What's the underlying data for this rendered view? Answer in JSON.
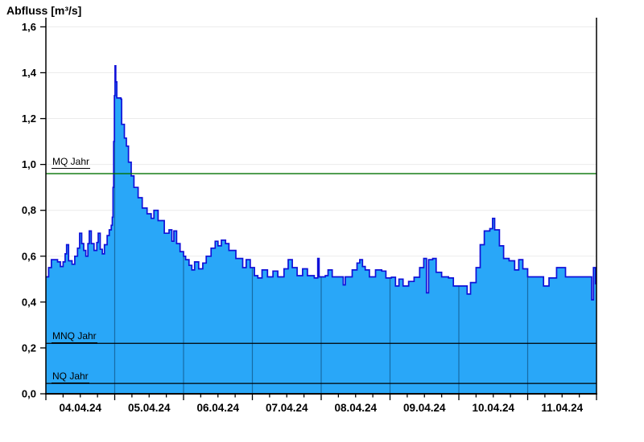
{
  "title": "Abfluss [m³/s]",
  "colors": {
    "area_fill": "#29A7F8",
    "area_outline": "#1010D8",
    "mq_line": "#007000",
    "mnq_nq_line": "#000000",
    "axis": "#000000",
    "horizontal_grid": "#ebebeb",
    "vertical_day_line": "rgba(0,25,50,0.42)"
  },
  "chart_data": {
    "type": "area",
    "title": "Abfluss [m³/s]",
    "xlabel": "",
    "ylabel": "Abfluss [m³/s]",
    "x_range_days": [
      0,
      8
    ],
    "x_tick_labels": [
      "04.04.24",
      "05.04.24",
      "06.04.24",
      "07.04.24",
      "08.04.24",
      "09.04.24",
      "10.04.24",
      "11.04.24"
    ],
    "minor_tick_step_days": 0.25,
    "ylim": [
      0,
      1.64
    ],
    "y_ticks": [
      {
        "v": 0.0,
        "label": "0,0"
      },
      {
        "v": 0.2,
        "label": "0,2"
      },
      {
        "v": 0.4,
        "label": "0,4"
      },
      {
        "v": 0.6,
        "label": "0,6"
      },
      {
        "v": 0.8,
        "label": "0,8"
      },
      {
        "v": 1.0,
        "label": "1,0"
      },
      {
        "v": 1.2,
        "label": "1,2"
      },
      {
        "v": 1.4,
        "label": "1,4"
      },
      {
        "v": 1.6,
        "label": "1,6"
      }
    ],
    "grid": {
      "horizontal_step": 0.2,
      "vertical": "daily"
    },
    "legend_position": "none",
    "reference_lines": [
      {
        "label": "MQ Jahr",
        "value": 0.96,
        "color": "#007000"
      },
      {
        "label": "MNQ Jahr",
        "value": 0.22,
        "color": "#000000"
      },
      {
        "label": "NQ Jahr",
        "value": 0.045,
        "color": "#000000"
      }
    ],
    "series": [
      {
        "name": "Abfluss",
        "unit": "m³/s",
        "interpolation": "step-after",
        "points": [
          [
            0.0,
            0.51
          ],
          [
            0.04,
            0.55
          ],
          [
            0.08,
            0.585
          ],
          [
            0.17,
            0.575
          ],
          [
            0.21,
            0.555
          ],
          [
            0.25,
            0.575
          ],
          [
            0.28,
            0.61
          ],
          [
            0.3,
            0.65
          ],
          [
            0.33,
            0.58
          ],
          [
            0.38,
            0.565
          ],
          [
            0.42,
            0.6
          ],
          [
            0.46,
            0.635
          ],
          [
            0.49,
            0.7
          ],
          [
            0.52,
            0.655
          ],
          [
            0.55,
            0.625
          ],
          [
            0.58,
            0.6
          ],
          [
            0.61,
            0.655
          ],
          [
            0.63,
            0.71
          ],
          [
            0.66,
            0.655
          ],
          [
            0.7,
            0.625
          ],
          [
            0.74,
            0.66
          ],
          [
            0.76,
            0.7
          ],
          [
            0.79,
            0.63
          ],
          [
            0.82,
            0.61
          ],
          [
            0.85,
            0.65
          ],
          [
            0.89,
            0.69
          ],
          [
            0.92,
            0.715
          ],
          [
            0.95,
            0.735
          ],
          [
            0.965,
            0.77
          ],
          [
            0.975,
            0.9
          ],
          [
            0.985,
            1.1
          ],
          [
            0.995,
            1.3
          ],
          [
            1.005,
            1.43
          ],
          [
            1.015,
            1.36
          ],
          [
            1.03,
            1.29
          ],
          [
            1.09,
            1.285
          ],
          [
            1.1,
            1.175
          ],
          [
            1.14,
            1.115
          ],
          [
            1.17,
            1.08
          ],
          [
            1.2,
            1.01
          ],
          [
            1.24,
            0.95
          ],
          [
            1.28,
            0.9
          ],
          [
            1.34,
            0.855
          ],
          [
            1.4,
            0.81
          ],
          [
            1.47,
            0.785
          ],
          [
            1.53,
            0.765
          ],
          [
            1.57,
            0.8
          ],
          [
            1.63,
            0.755
          ],
          [
            1.72,
            0.7
          ],
          [
            1.79,
            0.715
          ],
          [
            1.83,
            0.665
          ],
          [
            1.86,
            0.71
          ],
          [
            1.9,
            0.655
          ],
          [
            1.95,
            0.62
          ],
          [
            2.0,
            0.6
          ],
          [
            2.03,
            0.585
          ],
          [
            2.08,
            0.56
          ],
          [
            2.12,
            0.54
          ],
          [
            2.16,
            0.575
          ],
          [
            2.22,
            0.545
          ],
          [
            2.28,
            0.57
          ],
          [
            2.33,
            0.6
          ],
          [
            2.4,
            0.635
          ],
          [
            2.46,
            0.665
          ],
          [
            2.5,
            0.645
          ],
          [
            2.55,
            0.67
          ],
          [
            2.61,
            0.655
          ],
          [
            2.66,
            0.625
          ],
          [
            2.76,
            0.59
          ],
          [
            2.86,
            0.55
          ],
          [
            2.91,
            0.585
          ],
          [
            2.97,
            0.55
          ],
          [
            3.03,
            0.515
          ],
          [
            3.08,
            0.505
          ],
          [
            3.14,
            0.54
          ],
          [
            3.22,
            0.51
          ],
          [
            3.3,
            0.535
          ],
          [
            3.37,
            0.51
          ],
          [
            3.46,
            0.545
          ],
          [
            3.52,
            0.585
          ],
          [
            3.58,
            0.55
          ],
          [
            3.65,
            0.515
          ],
          [
            3.73,
            0.545
          ],
          [
            3.8,
            0.515
          ],
          [
            3.9,
            0.505
          ],
          [
            3.95,
            0.59
          ],
          [
            3.97,
            0.51
          ],
          [
            4.06,
            0.515
          ],
          [
            4.1,
            0.54
          ],
          [
            4.16,
            0.51
          ],
          [
            4.3,
            0.51
          ],
          [
            4.32,
            0.475
          ],
          [
            4.35,
            0.51
          ],
          [
            4.45,
            0.54
          ],
          [
            4.52,
            0.57
          ],
          [
            4.56,
            0.585
          ],
          [
            4.6,
            0.555
          ],
          [
            4.64,
            0.54
          ],
          [
            4.7,
            0.51
          ],
          [
            4.79,
            0.54
          ],
          [
            4.88,
            0.535
          ],
          [
            4.94,
            0.505
          ],
          [
            5.02,
            0.508
          ],
          [
            5.08,
            0.47
          ],
          [
            5.13,
            0.5
          ],
          [
            5.19,
            0.47
          ],
          [
            5.27,
            0.49
          ],
          [
            5.35,
            0.508
          ],
          [
            5.43,
            0.55
          ],
          [
            5.49,
            0.59
          ],
          [
            5.53,
            0.44
          ],
          [
            5.56,
            0.585
          ],
          [
            5.62,
            0.59
          ],
          [
            5.67,
            0.53
          ],
          [
            5.75,
            0.51
          ],
          [
            5.85,
            0.505
          ],
          [
            5.92,
            0.47
          ],
          [
            6.08,
            0.47
          ],
          [
            6.12,
            0.435
          ],
          [
            6.17,
            0.485
          ],
          [
            6.25,
            0.55
          ],
          [
            6.31,
            0.65
          ],
          [
            6.37,
            0.71
          ],
          [
            6.45,
            0.72
          ],
          [
            6.49,
            0.765
          ],
          [
            6.52,
            0.715
          ],
          [
            6.59,
            0.645
          ],
          [
            6.65,
            0.59
          ],
          [
            6.73,
            0.58
          ],
          [
            6.81,
            0.54
          ],
          [
            6.87,
            0.585
          ],
          [
            6.93,
            0.545
          ],
          [
            7.0,
            0.51
          ],
          [
            7.17,
            0.51
          ],
          [
            7.23,
            0.47
          ],
          [
            7.31,
            0.505
          ],
          [
            7.42,
            0.55
          ],
          [
            7.55,
            0.51
          ],
          [
            7.89,
            0.51
          ],
          [
            7.93,
            0.41
          ],
          [
            7.955,
            0.55
          ],
          [
            7.985,
            0.48
          ],
          [
            8.0,
            0.48
          ]
        ]
      }
    ]
  }
}
